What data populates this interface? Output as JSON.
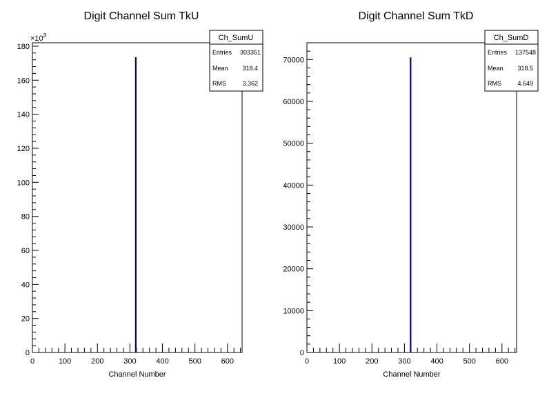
{
  "chart_data": [
    {
      "type": "bar",
      "title": "Digit Channel Sum TkU",
      "xlabel": "Channel Number",
      "ylabel": "",
      "xlim": [
        0,
        645
      ],
      "ylim": [
        0,
        182
      ],
      "y_multiplier": "×10",
      "y_multiplier_exp": "3",
      "xticks": [
        "0",
        "100",
        "200",
        "300",
        "400",
        "500",
        "600"
      ],
      "yticks": [
        "0",
        "20",
        "40",
        "60",
        "80",
        "100",
        "120",
        "140",
        "160",
        "180"
      ],
      "x": [
        318
      ],
      "values": [
        173.5
      ],
      "stats": {
        "name": "Ch_SumU",
        "rows": [
          {
            "label": "Entries",
            "value": "303351"
          },
          {
            "label": "Mean",
            "value": "318.4"
          },
          {
            "label": "RMS",
            "value": "3.362"
          }
        ]
      },
      "color": "#000080"
    },
    {
      "type": "bar",
      "title": "Digit Channel Sum TkD",
      "xlabel": "Channel Number",
      "ylabel": "",
      "xlim": [
        0,
        645
      ],
      "ylim": [
        0,
        74000
      ],
      "xticks": [
        "0",
        "100",
        "200",
        "300",
        "400",
        "500",
        "600"
      ],
      "yticks": [
        "0",
        "10000",
        "20000",
        "30000",
        "40000",
        "50000",
        "60000",
        "70000"
      ],
      "x": [
        319
      ],
      "values": [
        70500
      ],
      "stats": {
        "name": "Ch_SumD",
        "rows": [
          {
            "label": "Entries",
            "value": "137548"
          },
          {
            "label": "Mean",
            "value": "318.5"
          },
          {
            "label": "RMS",
            "value": "4.649"
          }
        ]
      },
      "color": "#000080"
    }
  ]
}
